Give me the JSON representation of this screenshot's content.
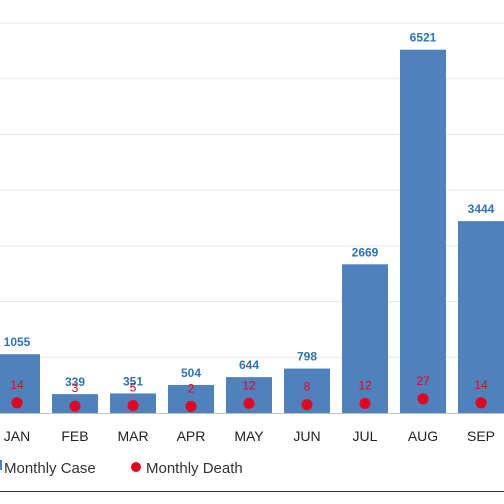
{
  "chart_data": {
    "type": "bar",
    "categories": [
      "JAN",
      "FEB",
      "MAR",
      "APR",
      "MAY",
      "JUN",
      "JUL",
      "AUG",
      "SEP"
    ],
    "series": [
      {
        "name": "Monthly Case",
        "kind": "bar",
        "values": [
          1055,
          339,
          351,
          504,
          644,
          798,
          2669,
          6521,
          3444
        ]
      },
      {
        "name": "Monthly Death",
        "kind": "point",
        "values": [
          14,
          3,
          5,
          2,
          12,
          8,
          12,
          27,
          14
        ]
      }
    ],
    "ylim": [
      0,
      7000
    ],
    "grid": true,
    "legend": "bottom",
    "colors": {
      "bar": "#4f81bd",
      "bar_label": "#2e75b6",
      "death": "#e8001c",
      "death_label": "#e8001c",
      "grid": "#e6e6e6",
      "axis": "#bfbfbf"
    }
  }
}
